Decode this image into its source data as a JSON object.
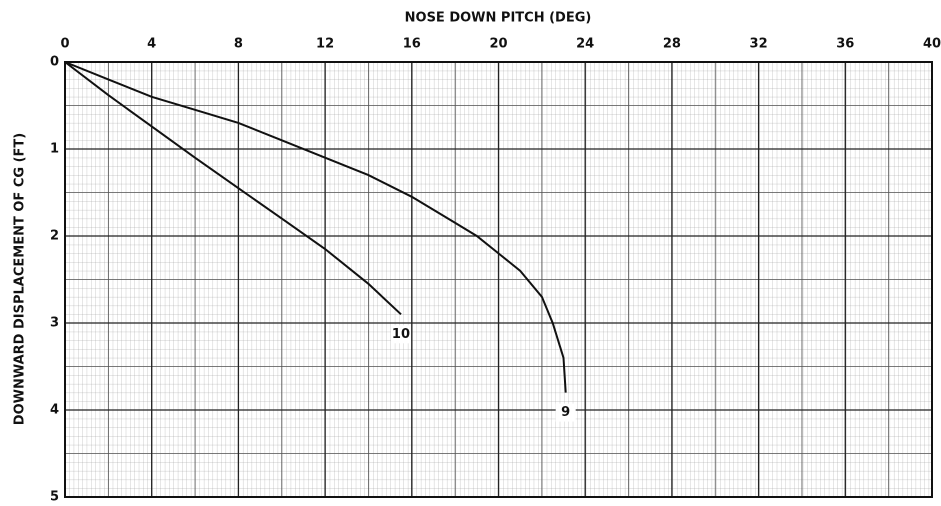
{
  "chart_data": {
    "type": "line",
    "xlabel": "NOSE DOWN PITCH (DEG)",
    "ylabel": "DOWNWARD DISPLACEMENT OF CG (FT)",
    "xlim": [
      0,
      40
    ],
    "xticks": [
      0,
      4,
      8,
      12,
      16,
      20,
      24,
      28,
      32,
      36,
      40
    ],
    "ylim": [
      5,
      0
    ],
    "yticks": [
      0,
      1,
      2,
      3,
      4,
      5
    ],
    "x_axis_position": "top",
    "grid": true,
    "series": [
      {
        "name": "9",
        "color": "#111111",
        "x": [
          0,
          2,
          4,
          6,
          8,
          10,
          12,
          14,
          16,
          18,
          19,
          20,
          21,
          22,
          22.5,
          23,
          23.1
        ],
        "values": [
          0,
          0.2,
          0.4,
          0.55,
          0.7,
          0.9,
          1.1,
          1.3,
          1.55,
          1.85,
          2.0,
          2.2,
          2.4,
          2.7,
          3.0,
          3.4,
          3.8
        ]
      },
      {
        "name": "10",
        "color": "#111111",
        "x": [
          0,
          2,
          4,
          6,
          8,
          10,
          12,
          14,
          15.5
        ],
        "values": [
          0,
          0.38,
          0.74,
          1.1,
          1.45,
          1.8,
          2.15,
          2.55,
          2.9
        ]
      }
    ]
  }
}
